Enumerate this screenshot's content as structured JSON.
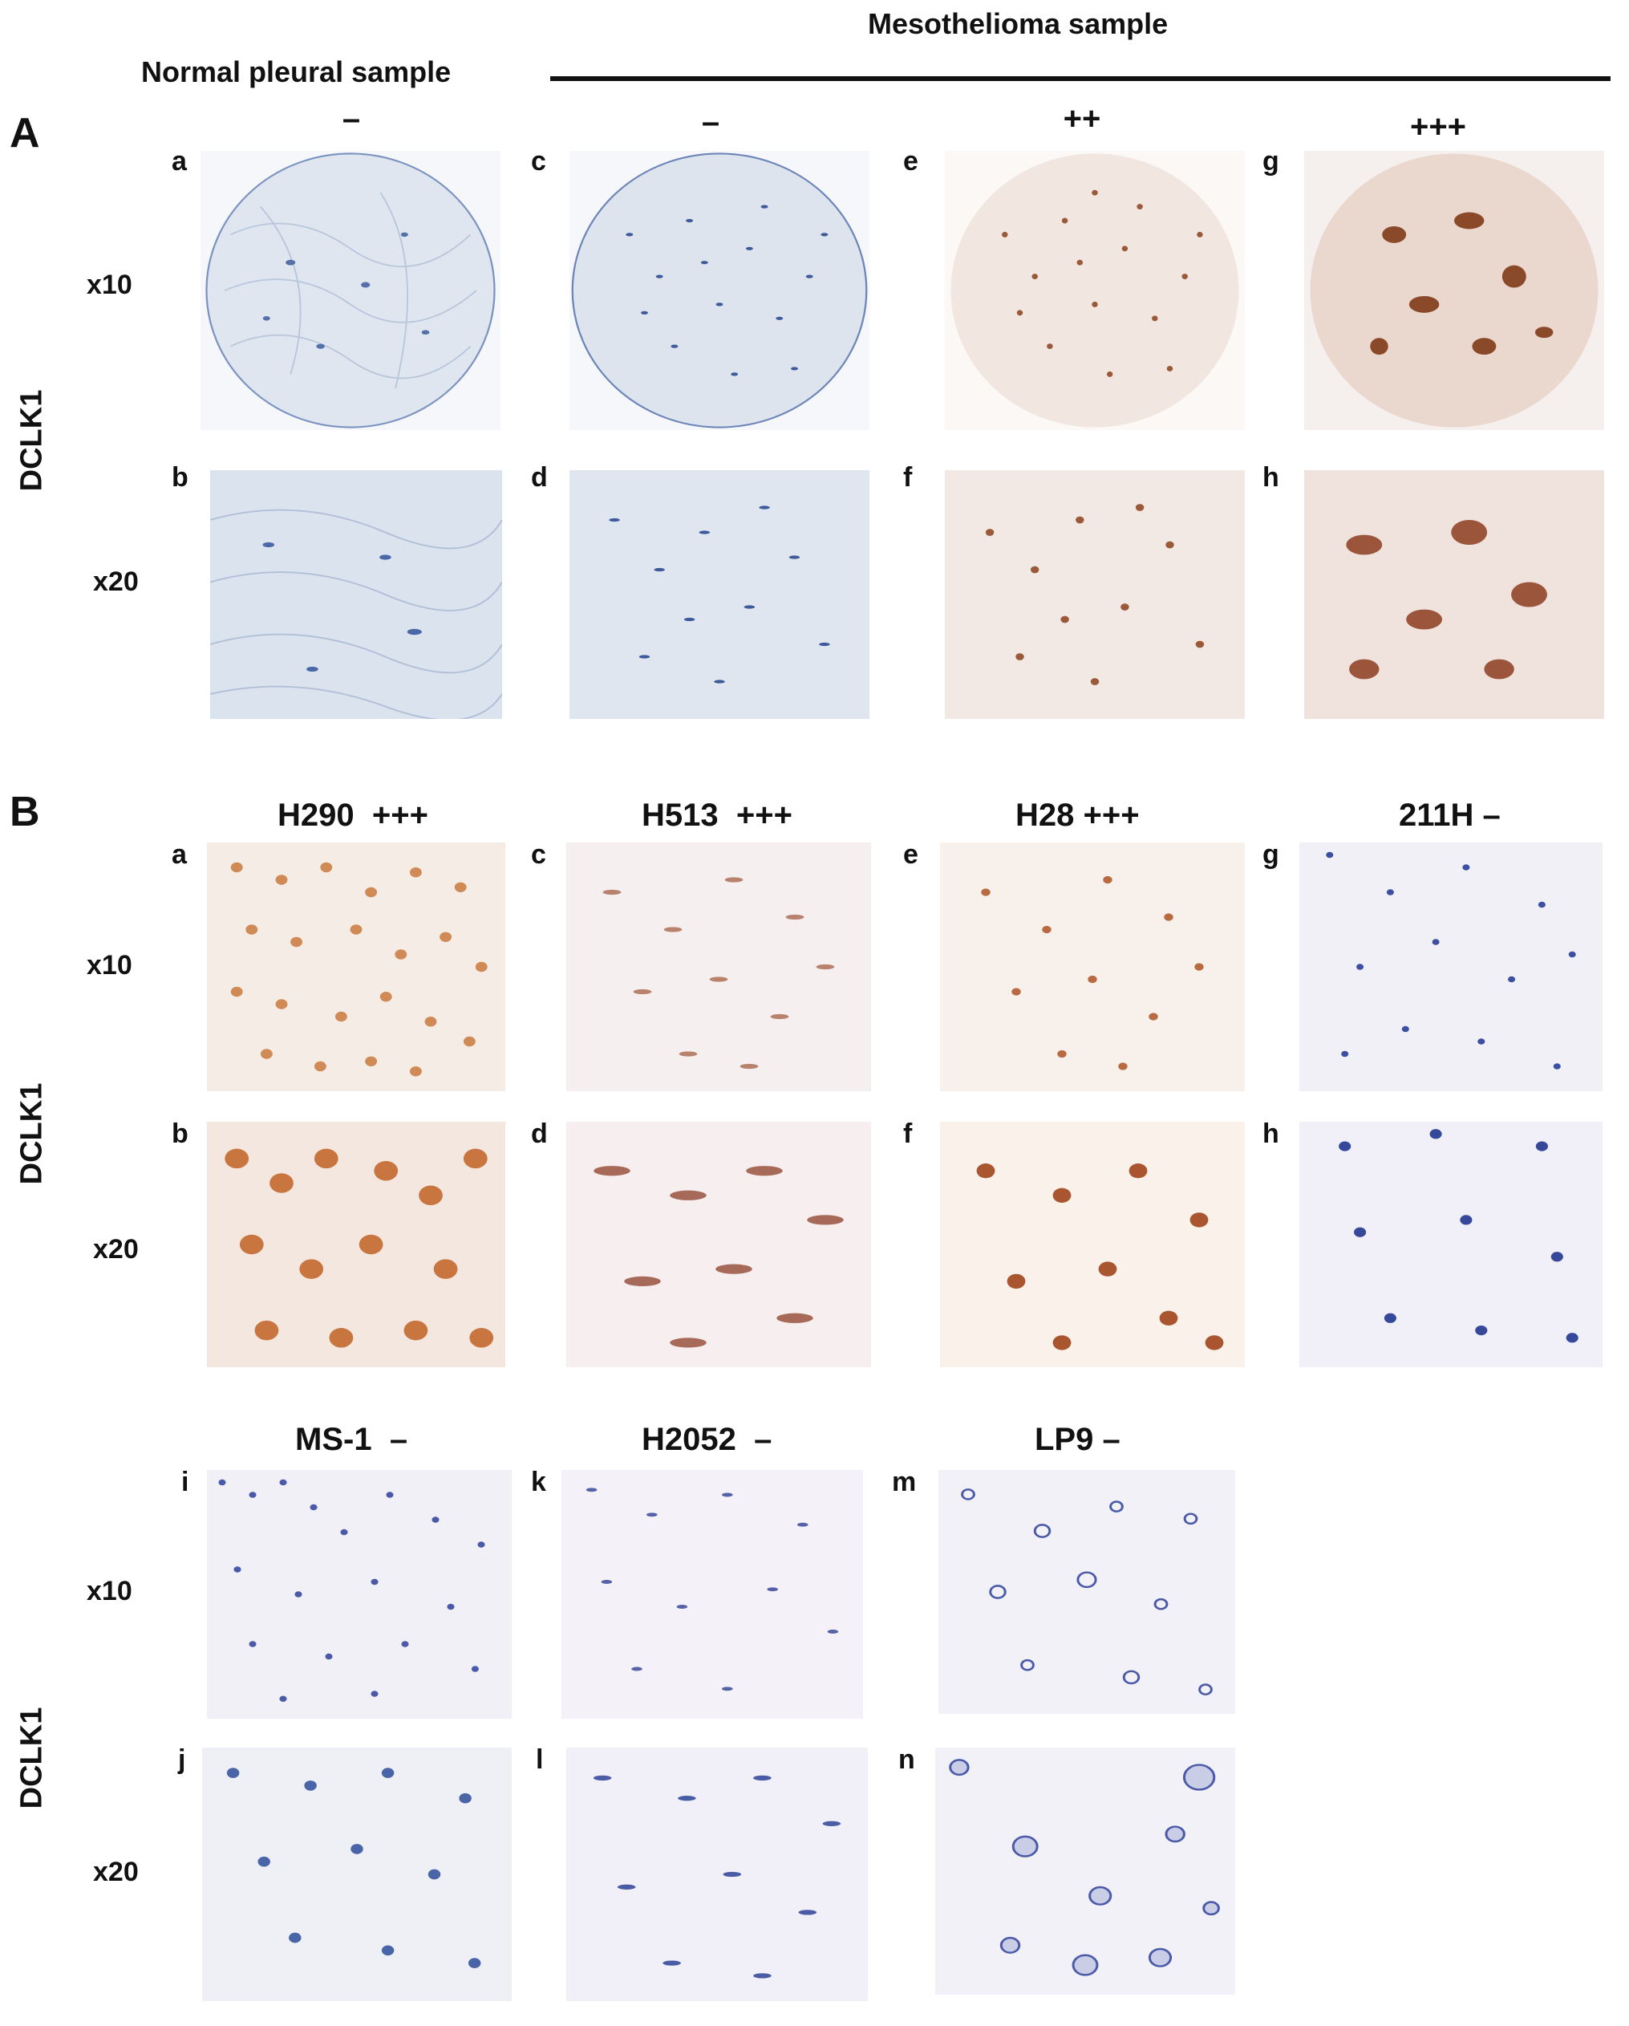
{
  "header": {
    "normal_label": "Normal pleural sample",
    "meso_label": "Mesothelioma sample"
  },
  "section_A": {
    "label": "A",
    "marker": "DCLK1",
    "col_scores": [
      "–",
      "–",
      "++",
      "+++"
    ],
    "mag_top": "x10",
    "mag_bottom": "x20",
    "panels": [
      "a",
      "b",
      "c",
      "d",
      "e",
      "f",
      "g",
      "h"
    ]
  },
  "section_B": {
    "label": "B",
    "marker": "DCLK1",
    "lines_top": [
      {
        "name": "H290",
        "score": "+++"
      },
      {
        "name": "H513",
        "score": "+++"
      },
      {
        "name": "H28",
        "score": "+++"
      },
      {
        "name": "211H",
        "score": "–"
      }
    ],
    "lines_bottom": [
      {
        "name": "MS-1",
        "score": "–"
      },
      {
        "name": "H2052",
        "score": "–"
      },
      {
        "name": "LP9",
        "score": "–"
      }
    ],
    "mag_top": "x10",
    "mag_bottom": "x20",
    "panels_top": [
      "a",
      "b",
      "c",
      "d",
      "e",
      "f",
      "g",
      "h"
    ],
    "panels_bottom": [
      "i",
      "j",
      "k",
      "l",
      "m",
      "n"
    ]
  },
  "colors": {
    "hematoxylin": "#3a4f9a",
    "dab_brown": "#b06a3a",
    "tissue_bg": "#e6ecf2",
    "cell_bg": "#f3eef6"
  }
}
